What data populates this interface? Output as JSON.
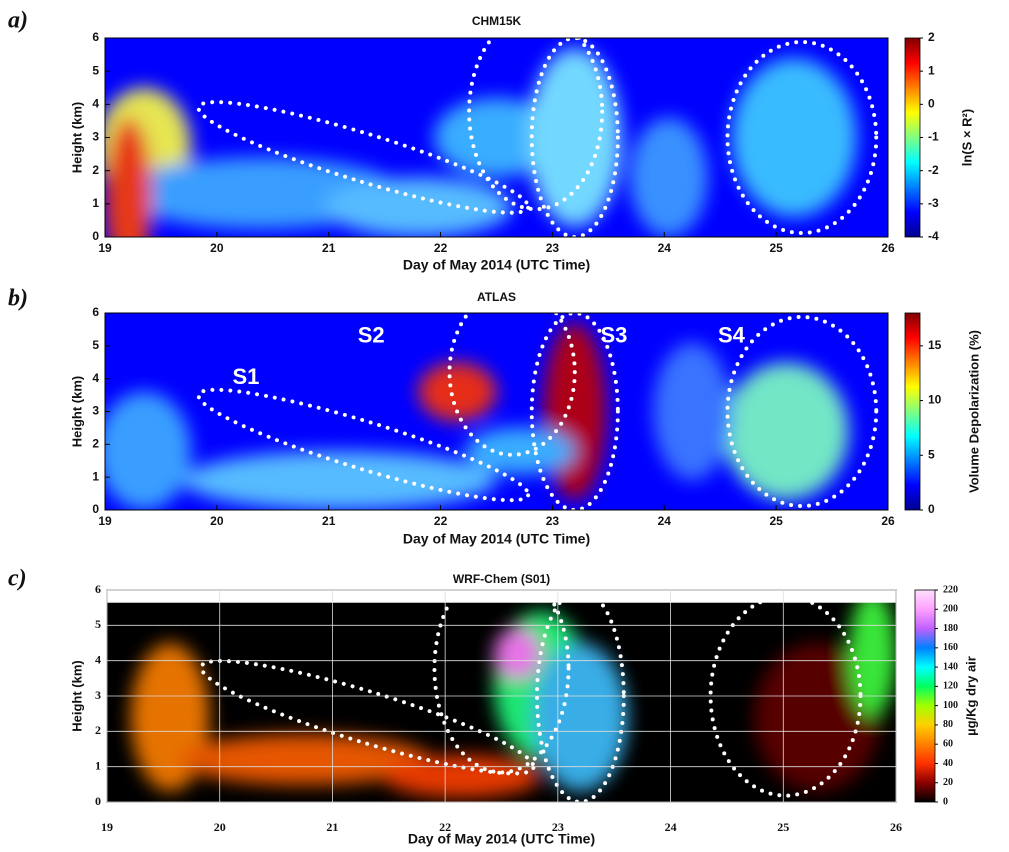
{
  "chart_data": [
    {
      "type": "heatmap",
      "panel_label": "a)",
      "title": "CHM15K",
      "x_label": "Day of May 2014 (UTC Time)",
      "y_label": "Height (km)",
      "xlim": [
        19,
        26
      ],
      "xticks": [
        19,
        20,
        21,
        22,
        23,
        24,
        25,
        26
      ],
      "ylim": [
        0,
        6
      ],
      "yticks": [
        0,
        1,
        2,
        3,
        4,
        5,
        6
      ],
      "grid": false,
      "colorbar_label": "ln(S × R²)",
      "clim": [
        -4,
        2
      ],
      "cticks": [
        -4,
        -3,
        -2,
        -1,
        0,
        1,
        2
      ],
      "colormap": [
        "#00008f",
        "#0000ff",
        "#0080ff",
        "#00ffff",
        "#80ff80",
        "#ffff00",
        "#ff8000",
        "#ff0000",
        "#800000"
      ]
    },
    {
      "type": "heatmap",
      "panel_label": "b)",
      "title": "ATLAS",
      "x_label": "Day of May 2014 (UTC Time)",
      "y_label": "Height (km)",
      "xlim": [
        19,
        26
      ],
      "xticks": [
        19,
        20,
        21,
        22,
        23,
        24,
        25,
        26
      ],
      "ylim": [
        0,
        6
      ],
      "yticks": [
        0,
        1,
        2,
        3,
        4,
        5,
        6
      ],
      "grid": false,
      "annotations": [
        "S1",
        "S2",
        "S3",
        "S4"
      ],
      "colorbar_label": "Volume Depolarization (%)",
      "clim": [
        0,
        18
      ],
      "cticks": [
        0,
        5,
        10,
        15
      ],
      "colormap": [
        "#00008f",
        "#0000ff",
        "#0080ff",
        "#00ffff",
        "#80ff80",
        "#ffff00",
        "#ff8000",
        "#ff0000",
        "#800000"
      ]
    },
    {
      "type": "heatmap",
      "panel_label": "c)",
      "title": "WRF-Chem (S01)",
      "x_label": "Day of May 2014 (UTC Time)",
      "y_label": "Height (km)",
      "xlim": [
        19,
        26
      ],
      "xticks": [
        19,
        20,
        21,
        22,
        23,
        24,
        25,
        26
      ],
      "ylim": [
        0,
        6
      ],
      "yticks": [
        0,
        1,
        2,
        3,
        4,
        5,
        6
      ],
      "grid": true,
      "colorbar_label": "µg/Kg dry air",
      "clim": [
        0,
        220
      ],
      "cticks": [
        0,
        20,
        40,
        60,
        80,
        100,
        120,
        140,
        160,
        180,
        200,
        220
      ],
      "colormap": [
        "#000000",
        "#8b0000",
        "#ff3000",
        "#ff8000",
        "#ffd000",
        "#a0ff00",
        "#00ff60",
        "#00ffff",
        "#0080ff",
        "#c060ff",
        "#ffa0ff",
        "#ffe0ff"
      ]
    }
  ]
}
